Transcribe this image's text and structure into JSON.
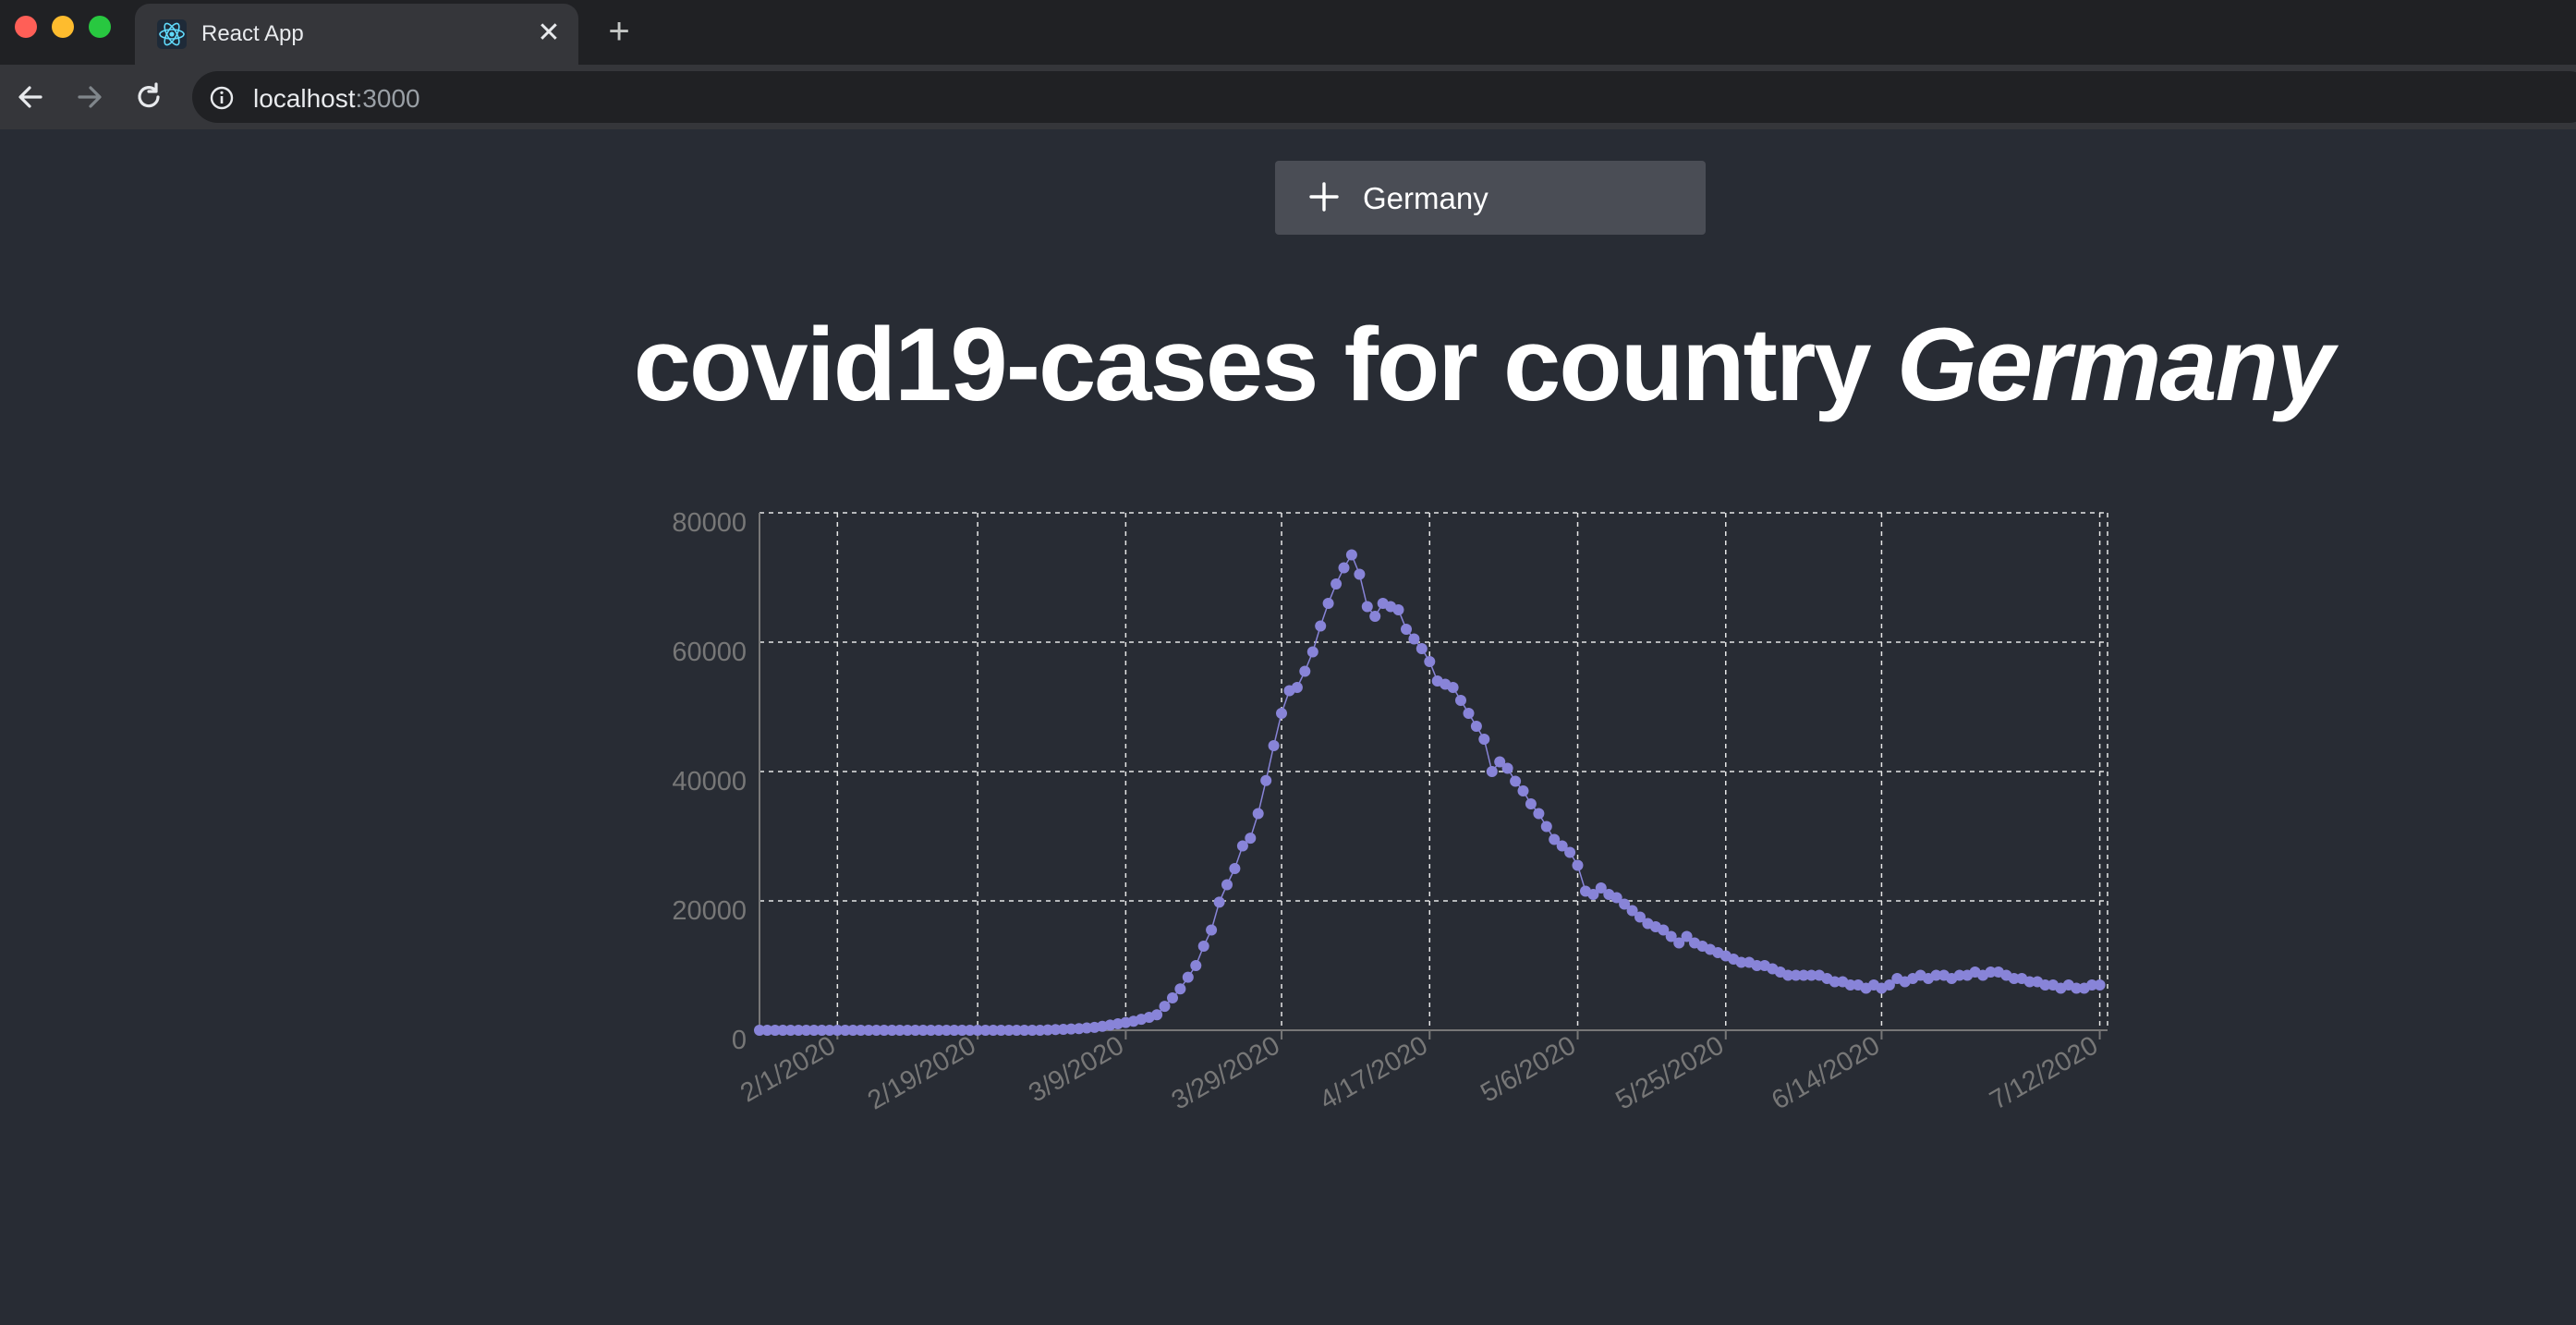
{
  "browser": {
    "tab_title": "React App",
    "tab_close": "✕",
    "new_tab": "+",
    "url_host": "localhost",
    "url_port": ":3000"
  },
  "app": {
    "country_button_label": "Germany",
    "title_prefix": "covid19-cases for country",
    "title_country": "Germany"
  },
  "chart_data": {
    "type": "line",
    "title": "",
    "xlabel": "",
    "ylabel": "",
    "ylim": [
      0,
      80000
    ],
    "yticks": [
      0,
      20000,
      40000,
      60000,
      80000
    ],
    "xticks": [
      "2/1/2020",
      "2/19/2020",
      "3/9/2020",
      "3/29/2020",
      "4/17/2020",
      "5/6/2020",
      "5/25/2020",
      "6/14/2020",
      "7/12/2020"
    ],
    "xtick_days": [
      10,
      28,
      47,
      67,
      86,
      105,
      124,
      144,
      172
    ],
    "x_range_days": [
      0,
      173
    ],
    "grid": true,
    "color": "#8884d8",
    "series": [
      {
        "values": [
          0,
          0,
          0,
          0,
          0,
          0,
          0,
          0,
          0,
          0,
          0,
          0,
          0,
          0,
          0,
          0,
          0,
          0,
          0,
          0,
          0,
          0,
          0,
          0,
          0,
          0,
          0,
          0,
          0,
          0,
          0,
          0,
          0,
          0,
          0,
          0,
          0,
          50,
          100,
          150,
          200,
          250,
          350,
          450,
          600,
          800,
          1000,
          1200,
          1400,
          1700,
          2000,
          2400,
          3700,
          5000,
          6400,
          8200,
          10000,
          13000,
          15500,
          19800,
          22500,
          25000,
          28500,
          29700,
          33500,
          38600,
          44000,
          49000,
          52500,
          53000,
          55500,
          58500,
          62500,
          66000,
          69000,
          71500,
          73500,
          70500,
          65500,
          64000,
          66000,
          65500,
          65000,
          62000,
          60500,
          59000,
          57000,
          54000,
          53500,
          53000,
          51000,
          49000,
          47000,
          45000,
          40000,
          41500,
          40500,
          38500,
          37000,
          35000,
          33500,
          31500,
          29500,
          28500,
          27500,
          25500,
          21500,
          21000,
          22000,
          21000,
          20500,
          19500,
          18500,
          17500,
          16500,
          16000,
          15500,
          14500,
          13500,
          14500,
          13500,
          13000,
          12500,
          12000,
          11500,
          11000,
          10500,
          10500,
          10000,
          10000,
          9500,
          9000,
          8500,
          8500,
          8500,
          8500,
          8500,
          8000,
          7500,
          7500,
          7000,
          7000,
          6500,
          7000,
          6500,
          7000,
          8000,
          7500,
          8000,
          8500,
          8000,
          8500,
          8500,
          8000,
          8500,
          8500,
          9000,
          8500,
          9000,
          9000,
          8500,
          8000,
          8000,
          7500,
          7500,
          7000,
          7000,
          6500,
          7000,
          6500,
          6500,
          7000,
          7000
        ]
      }
    ]
  }
}
